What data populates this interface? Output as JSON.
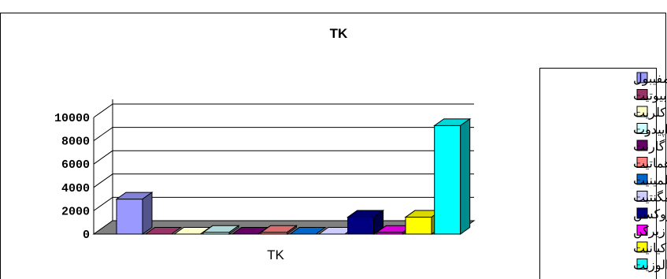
{
  "chart_data": {
    "type": "bar",
    "style": "3d-column",
    "title": "TK",
    "categories": [
      "TK"
    ],
    "xlabel": "",
    "ylabel": "",
    "ylim": [
      0,
      10000
    ],
    "yticks": [
      "0",
      "2000",
      "4000",
      "6000",
      "8000",
      "10000"
    ],
    "grid": true,
    "legend_position": "right",
    "series": [
      {
        "name": "آمفیبول",
        "values": [
          3000
        ],
        "color": "#9999ff"
      },
      {
        "name": "بیوتیت",
        "values": [
          0
        ],
        "color": "#993366"
      },
      {
        "name": "کلریت",
        "values": [
          0
        ],
        "color": "#ffffcc"
      },
      {
        "name": "اپیدوت",
        "values": [
          150
        ],
        "color": "#ccffff"
      },
      {
        "name": "گارنت",
        "values": [
          0
        ],
        "color": "#660066"
      },
      {
        "name": "هماتیت",
        "values": [
          150
        ],
        "color": "#ff8080"
      },
      {
        "name": "ایلمینیت",
        "values": [
          0
        ],
        "color": "#0066cc"
      },
      {
        "name": "مگنتیت",
        "values": [
          0
        ],
        "color": "#ccccff"
      },
      {
        "name": "پیروکسن",
        "values": [
          1450
        ],
        "color": "#000080"
      },
      {
        "name": "زیرکن",
        "values": [
          150
        ],
        "color": "#ff00ff"
      },
      {
        "name": "کیانیت",
        "values": [
          1450
        ],
        "color": "#ffff00"
      },
      {
        "name": "آندالوزیت",
        "values": [
          9300
        ],
        "color": "#00ffff"
      }
    ]
  }
}
